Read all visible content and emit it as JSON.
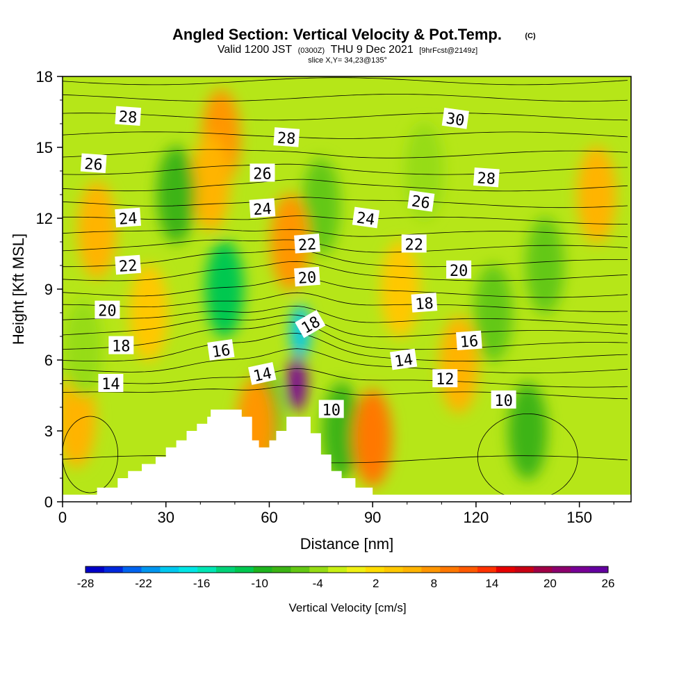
{
  "chart_data": {
    "type": "contour",
    "title": "Angled Section: Vertical Velocity & Pot.Temp.",
    "title_unit": "(C)",
    "subtitle": {
      "part1": "Valid 1200 JST",
      "part2": "(0300Z)",
      "part3": "THU 9 Dec 2021",
      "part4": "[9hrFcst@2149z]"
    },
    "slice_label": "slice X,Y= 34,23@135°",
    "xlabel": "Distance [nm]",
    "ylabel": "Height [Kft MSL]",
    "xlim": [
      0,
      165
    ],
    "ylim": [
      0,
      18
    ],
    "xticks": [
      "0",
      "30",
      "60",
      "90",
      "120",
      "150"
    ],
    "yticks": [
      "0",
      "3",
      "6",
      "9",
      "12",
      "15",
      "18"
    ],
    "terrain": [
      [
        0,
        0.3
      ],
      [
        10,
        0.3
      ],
      [
        10,
        0.6
      ],
      [
        16,
        0.6
      ],
      [
        16,
        1.0
      ],
      [
        19,
        1.0
      ],
      [
        19,
        1.3
      ],
      [
        23,
        1.3
      ],
      [
        23,
        1.6
      ],
      [
        27,
        1.6
      ],
      [
        27,
        1.9
      ],
      [
        30,
        1.9
      ],
      [
        30,
        2.3
      ],
      [
        33,
        2.3
      ],
      [
        33,
        2.6
      ],
      [
        36,
        2.6
      ],
      [
        36,
        3.0
      ],
      [
        39,
        3.0
      ],
      [
        39,
        3.3
      ],
      [
        42,
        3.3
      ],
      [
        42,
        3.6
      ],
      [
        43,
        3.6
      ],
      [
        43,
        3.9
      ],
      [
        52,
        3.9
      ],
      [
        52,
        3.6
      ],
      [
        55,
        3.6
      ],
      [
        55,
        2.6
      ],
      [
        57,
        2.6
      ],
      [
        57,
        2.3
      ],
      [
        60,
        2.3
      ],
      [
        60,
        2.6
      ],
      [
        62,
        2.6
      ],
      [
        62,
        3.0
      ],
      [
        65,
        3.0
      ],
      [
        65,
        3.6
      ],
      [
        72,
        3.6
      ],
      [
        72,
        2.9
      ],
      [
        75,
        2.9
      ],
      [
        75,
        2.0
      ],
      [
        78,
        2.0
      ],
      [
        78,
        1.3
      ],
      [
        81,
        1.3
      ],
      [
        81,
        1.0
      ],
      [
        85,
        1.0
      ],
      [
        85,
        0.6
      ],
      [
        90,
        0.6
      ],
      [
        90,
        0.3
      ],
      [
        165,
        0.3
      ]
    ],
    "colorbar": {
      "label": "Vertical Velocity [cm/s]",
      "ticks": [
        "-28",
        "-22",
        "-16",
        "-10",
        "-4",
        "2",
        "8",
        "14",
        "20",
        "26"
      ],
      "colors": [
        "#0000c8",
        "#0028dc",
        "#0064f0",
        "#0096f0",
        "#00c8f0",
        "#00e6e6",
        "#00e6b4",
        "#00d278",
        "#00c850",
        "#1eb41e",
        "#3cb414",
        "#64c814",
        "#96dc14",
        "#c8f014",
        "#f0f014",
        "#ffdc00",
        "#ffc800",
        "#ffb400",
        "#ff9600",
        "#ff7800",
        "#ff5a00",
        "#ff3200",
        "#e60000",
        "#c80014",
        "#a00046",
        "#8c006e",
        "#780096",
        "#6400a0"
      ]
    },
    "wvel_cells": [
      {
        "x": 46,
        "y": 15.4,
        "v": 8
      },
      {
        "x": 43,
        "y": 13.5,
        "v": 5
      },
      {
        "x": 10,
        "y": 11.5,
        "v": 5
      },
      {
        "x": 33,
        "y": 13.0,
        "v": -8
      },
      {
        "x": 75,
        "y": 12.5,
        "v": -6
      },
      {
        "x": 47,
        "y": 9.0,
        "v": -12
      },
      {
        "x": 66,
        "y": 11.0,
        "v": 8
      },
      {
        "x": 69,
        "y": 7.2,
        "v": -20
      },
      {
        "x": 68,
        "y": 5.0,
        "v": 24
      },
      {
        "x": 81,
        "y": 3.0,
        "v": -9
      },
      {
        "x": 90,
        "y": 2.7,
        "v": 9
      },
      {
        "x": 58,
        "y": 3.5,
        "v": -10
      },
      {
        "x": 56,
        "y": 3.2,
        "v": 7
      },
      {
        "x": 135,
        "y": 3.0,
        "v": -9
      },
      {
        "x": 140,
        "y": 10.0,
        "v": -7
      },
      {
        "x": 155,
        "y": 13.0,
        "v": 5
      },
      {
        "x": 115,
        "y": 5.8,
        "v": 6
      },
      {
        "x": 105,
        "y": 14.0,
        "v": -5
      },
      {
        "x": 4,
        "y": 3.5,
        "v": 5
      },
      {
        "x": 6,
        "y": 6.5,
        "v": -5
      },
      {
        "x": 125,
        "y": 8.0,
        "v": -6
      },
      {
        "x": 98,
        "y": 9.0,
        "v": 4
      },
      {
        "x": 25,
        "y": 8.0,
        "v": 4
      }
    ],
    "theta_contours": [
      {
        "base": 1.8,
        "amp": 0.0
      },
      {
        "base": 4.5,
        "amp": 0.55
      },
      {
        "base": 5.0,
        "amp": 0.65
      },
      {
        "base": 5.6,
        "amp": 0.75
      },
      {
        "base": 6.1,
        "amp": 0.85
      },
      {
        "base": 6.6,
        "amp": 0.9
      },
      {
        "base": 7.1,
        "amp": 0.85
      },
      {
        "base": 7.6,
        "amp": 0.8
      },
      {
        "base": 8.2,
        "amp": 0.7
      },
      {
        "base": 8.8,
        "amp": 0.6
      },
      {
        "base": 9.5,
        "amp": 0.5
      },
      {
        "base": 10.1,
        "amp": 0.45
      },
      {
        "base": 10.7,
        "amp": 0.4
      },
      {
        "base": 11.3,
        "amp": 0.35
      },
      {
        "base": 11.9,
        "amp": 0.3
      },
      {
        "base": 12.6,
        "amp": 0.25
      },
      {
        "base": 13.3,
        "amp": 0.2
      },
      {
        "base": 14.0,
        "amp": 0.15
      },
      {
        "base": 14.7,
        "amp": 0.1
      },
      {
        "base": 15.5,
        "amp": 0.05
      },
      {
        "base": 16.3,
        "amp": 0.0
      },
      {
        "base": 17.1,
        "amp": 0.0
      },
      {
        "base": 17.8,
        "amp": 0.0
      }
    ],
    "contour_labels": [
      {
        "text": "28",
        "x": 19,
        "y": 16.3,
        "rot": 4
      },
      {
        "text": "28",
        "x": 65,
        "y": 15.4,
        "rot": 4
      },
      {
        "text": "30",
        "x": 114,
        "y": 16.2,
        "rot": 8
      },
      {
        "text": "26",
        "x": 9,
        "y": 14.3,
        "rot": 4
      },
      {
        "text": "26",
        "x": 58,
        "y": 13.9,
        "rot": 0
      },
      {
        "text": "28",
        "x": 123,
        "y": 13.7,
        "rot": 4
      },
      {
        "text": "26",
        "x": 104,
        "y": 12.7,
        "rot": 8
      },
      {
        "text": "24",
        "x": 19,
        "y": 12.0,
        "rot": -4
      },
      {
        "text": "24",
        "x": 58,
        "y": 12.4,
        "rot": -4
      },
      {
        "text": "24",
        "x": 88,
        "y": 12.0,
        "rot": 8
      },
      {
        "text": "22",
        "x": 71,
        "y": 10.9,
        "rot": -4
      },
      {
        "text": "22",
        "x": 102,
        "y": 10.9,
        "rot": 0
      },
      {
        "text": "22",
        "x": 19,
        "y": 10.0,
        "rot": -4
      },
      {
        "text": "20",
        "x": 71,
        "y": 9.5,
        "rot": -4
      },
      {
        "text": "20",
        "x": 115,
        "y": 9.8,
        "rot": 0
      },
      {
        "text": "20",
        "x": 13,
        "y": 8.1,
        "rot": 0
      },
      {
        "text": "18",
        "x": 72,
        "y": 7.5,
        "rot": -30
      },
      {
        "text": "18",
        "x": 105,
        "y": 8.4,
        "rot": -4
      },
      {
        "text": "18",
        "x": 17,
        "y": 6.6,
        "rot": 0
      },
      {
        "text": "16",
        "x": 46,
        "y": 6.4,
        "rot": -8
      },
      {
        "text": "16",
        "x": 118,
        "y": 6.8,
        "rot": -4
      },
      {
        "text": "14",
        "x": 14,
        "y": 5.0,
        "rot": 0
      },
      {
        "text": "14",
        "x": 58,
        "y": 5.4,
        "rot": -12
      },
      {
        "text": "14",
        "x": 99,
        "y": 6.0,
        "rot": -8
      },
      {
        "text": "12",
        "x": 111,
        "y": 5.2,
        "rot": 0
      },
      {
        "text": "10",
        "x": 78,
        "y": 3.9,
        "rot": 0
      },
      {
        "text": "10",
        "x": 128,
        "y": 4.3,
        "rot": 0
      }
    ]
  }
}
